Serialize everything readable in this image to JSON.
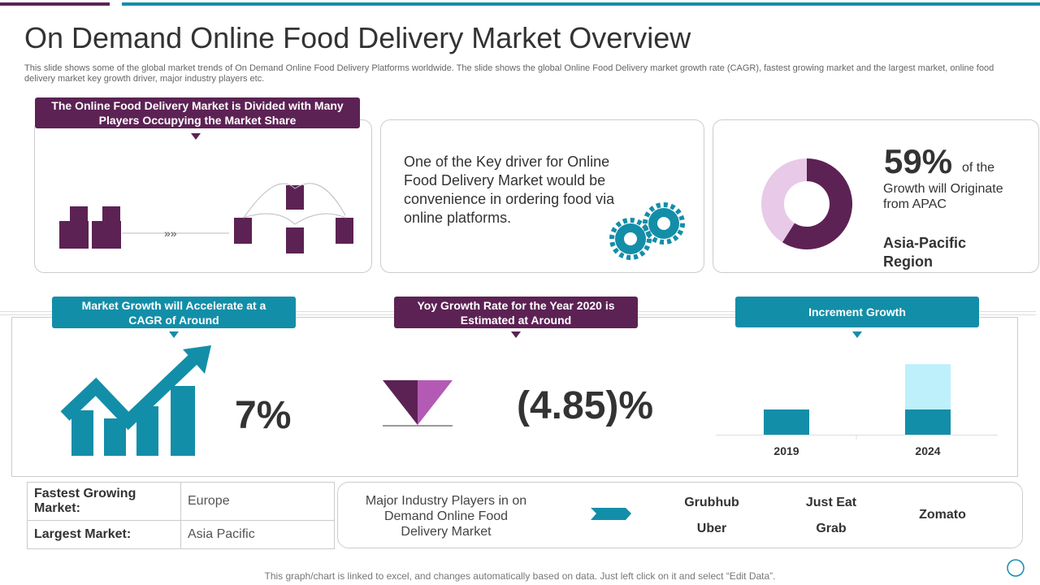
{
  "header": {
    "title": "On Demand Online Food Delivery Market Overview",
    "subtitle": "This slide shows some of the global market trends of On Demand Online Food Delivery Platforms worldwide. The slide shows the global Online Food Delivery market growth rate (CAGR), fastest growing market and the largest market, online food delivery market key growth driver, major industry players etc."
  },
  "market_divided": {
    "title": "The Online Food Delivery Market is Divided with Many Players Occupying the Market Share"
  },
  "key_driver": {
    "text": "One of the Key driver for Online Food Delivery Market would be convenience in ordering food via online platforms."
  },
  "apac": {
    "value": 59,
    "value_label": "59%",
    "colors": [
      "#5c2254",
      "#e8c9e8"
    ],
    "text_short": "of the",
    "text": "Growth will Originate from APAC",
    "region": "Asia-Pacific Region"
  },
  "cagr": {
    "title": "Market Growth will Accelerate at a CAGR of Around",
    "value": "7%"
  },
  "yoy": {
    "title": "Yoy Growth Rate for the Year 2020 is Estimated at Around",
    "value": "(4.85)%"
  },
  "increment": {
    "title": "Increment Growth",
    "categories": [
      "2019",
      "2024"
    ],
    "series": [
      {
        "color": "#138ea8",
        "values": [
          1,
          1
        ]
      },
      {
        "color": "#bdf0fb",
        "values": [
          null,
          1.8
        ]
      }
    ]
  },
  "table": {
    "rows": [
      [
        "Fastest Growing Market:",
        "Europe"
      ],
      [
        "Largest Market:",
        "Asia Pacific"
      ]
    ]
  },
  "players": {
    "label": "Major Industry Players in on Demand Online Food Delivery Market",
    "names": [
      "Grubhub",
      "Just Eat",
      "Uber",
      "Grab",
      "Zomato"
    ]
  },
  "footer": "This graph/chart is linked to excel, and changes automatically based on data. Just left click on it and select “Edit Data”."
}
